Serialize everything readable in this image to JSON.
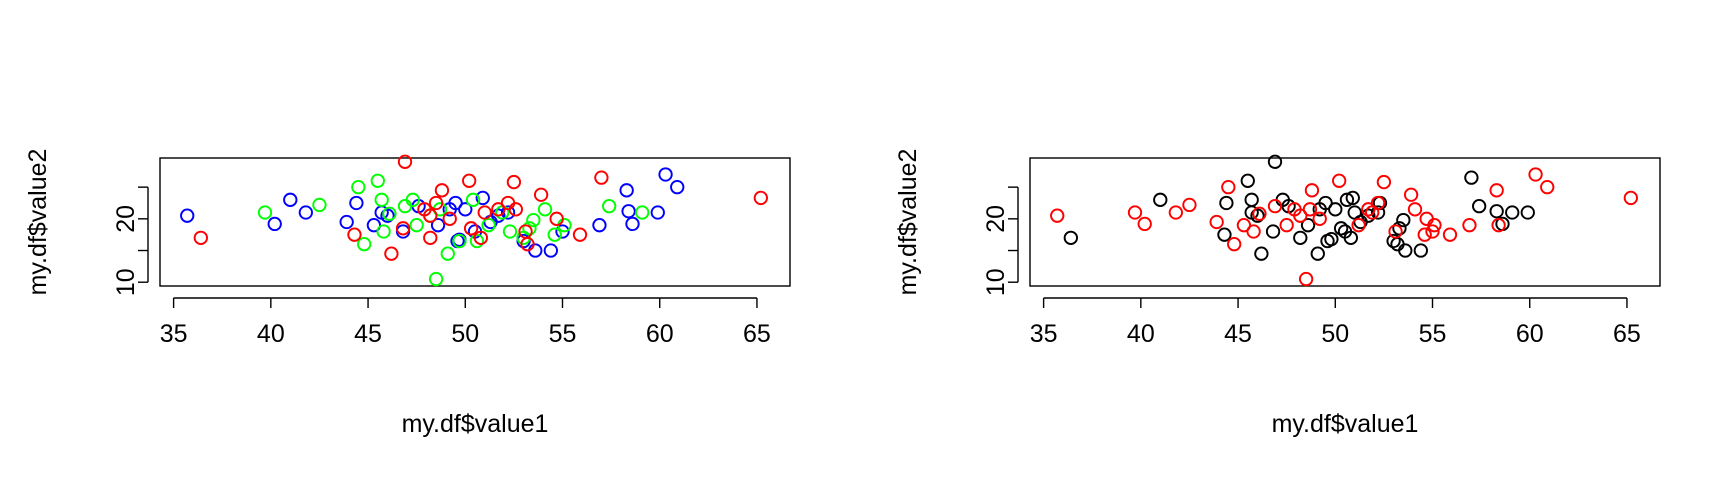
{
  "chart_data": [
    {
      "type": "scatter",
      "xlabel": "my.df$value1",
      "ylabel": "my.df$value2",
      "xlim": [
        34.3,
        66.7
      ],
      "ylim": [
        9.4,
        29.6
      ],
      "xticks": [
        35,
        40,
        45,
        50,
        55,
        60,
        65
      ],
      "yticks": [
        10,
        20
      ],
      "ytick_minor": [
        15,
        25
      ],
      "grid": false,
      "legend": "none",
      "marker": "open-circle",
      "series": [
        {
          "color": "#0000ff",
          "points": [
            [
              35.7,
              20.5
            ],
            [
              40.2,
              19.2
            ],
            [
              41.0,
              23.0
            ],
            [
              41.8,
              21.0
            ],
            [
              43.9,
              19.5
            ],
            [
              44.4,
              22.5
            ],
            [
              45.3,
              19.0
            ],
            [
              45.7,
              21.0
            ],
            [
              46.0,
              20.5
            ],
            [
              46.8,
              18.0
            ],
            [
              47.6,
              22.0
            ],
            [
              48.6,
              19.0
            ],
            [
              49.2,
              21.5
            ],
            [
              49.5,
              22.5
            ],
            [
              49.6,
              16.5
            ],
            [
              49.7,
              16.7
            ],
            [
              50.0,
              21.5
            ],
            [
              50.5,
              18.0
            ],
            [
              50.9,
              23.3
            ],
            [
              51.3,
              19.5
            ],
            [
              51.7,
              20.5
            ],
            [
              52.2,
              21.0
            ],
            [
              53.0,
              16.5
            ],
            [
              53.6,
              15.0
            ],
            [
              54.4,
              15.0
            ],
            [
              55.0,
              18.0
            ],
            [
              56.9,
              19.0
            ],
            [
              58.3,
              24.5
            ],
            [
              58.4,
              21.2
            ],
            [
              58.6,
              19.2
            ],
            [
              59.9,
              21.0
            ],
            [
              60.3,
              27.0
            ],
            [
              60.9,
              25.0
            ]
          ]
        },
        {
          "color": "#00ff00",
          "points": [
            [
              39.7,
              21.0
            ],
            [
              42.5,
              22.2
            ],
            [
              44.5,
              25.0
            ],
            [
              44.8,
              16.0
            ],
            [
              45.5,
              26.0
            ],
            [
              45.7,
              23.0
            ],
            [
              45.8,
              18.0
            ],
            [
              46.1,
              20.8
            ],
            [
              46.9,
              22.0
            ],
            [
              47.3,
              23.0
            ],
            [
              47.5,
              19.0
            ],
            [
              48.2,
              20.5
            ],
            [
              48.5,
              10.5
            ],
            [
              48.7,
              21.5
            ],
            [
              49.1,
              14.5
            ],
            [
              49.7,
              16.5
            ],
            [
              50.4,
              23.0
            ],
            [
              50.6,
              16.5
            ],
            [
              51.2,
              19.0
            ],
            [
              51.9,
              21.0
            ],
            [
              52.3,
              18.0
            ],
            [
              53.0,
              17.0
            ],
            [
              53.3,
              18.5
            ],
            [
              53.5,
              19.8
            ],
            [
              54.1,
              21.5
            ],
            [
              54.6,
              17.5
            ],
            [
              55.1,
              19.0
            ],
            [
              57.4,
              22.0
            ],
            [
              59.1,
              21.0
            ]
          ]
        },
        {
          "color": "#ff0000",
          "points": [
            [
              36.4,
              17.0
            ],
            [
              44.3,
              17.5
            ],
            [
              46.2,
              14.5
            ],
            [
              46.8,
              18.5
            ],
            [
              46.9,
              29.0
            ],
            [
              47.9,
              21.5
            ],
            [
              48.2,
              17.0
            ],
            [
              48.2,
              20.5
            ],
            [
              48.5,
              22.5
            ],
            [
              48.8,
              24.5
            ],
            [
              49.2,
              20.0
            ],
            [
              50.2,
              26.0
            ],
            [
              50.3,
              18.5
            ],
            [
              50.8,
              17.0
            ],
            [
              51.0,
              21.0
            ],
            [
              51.7,
              21.5
            ],
            [
              52.2,
              22.5
            ],
            [
              52.5,
              25.8
            ],
            [
              52.6,
              21.5
            ],
            [
              53.1,
              18.0
            ],
            [
              53.2,
              16.0
            ],
            [
              53.9,
              23.8
            ],
            [
              54.7,
              20.0
            ],
            [
              55.9,
              17.5
            ],
            [
              57.0,
              26.5
            ],
            [
              65.2,
              23.3
            ]
          ]
        }
      ]
    },
    {
      "type": "scatter",
      "xlabel": "my.df$value1",
      "ylabel": "my.df$value2",
      "xlim": [
        34.3,
        66.7
      ],
      "ylim": [
        9.4,
        29.6
      ],
      "xticks": [
        35,
        40,
        45,
        50,
        55,
        60,
        65
      ],
      "yticks": [
        10,
        20
      ],
      "ytick_minor": [
        15,
        25
      ],
      "grid": false,
      "legend": "none",
      "marker": "open-circle",
      "series": [
        {
          "color": "#000000",
          "points": [
            [
              36.4,
              17.0
            ],
            [
              41.0,
              23.0
            ],
            [
              44.3,
              17.5
            ],
            [
              44.4,
              22.5
            ],
            [
              45.5,
              26.0
            ],
            [
              45.7,
              23.0
            ],
            [
              45.7,
              21.0
            ],
            [
              46.0,
              20.5
            ],
            [
              46.2,
              14.5
            ],
            [
              46.8,
              18.0
            ],
            [
              46.9,
              29.0
            ],
            [
              47.3,
              23.0
            ],
            [
              47.6,
              22.0
            ],
            [
              48.2,
              17.0
            ],
            [
              48.6,
              19.0
            ],
            [
              49.1,
              14.5
            ],
            [
              49.2,
              21.5
            ],
            [
              49.5,
              22.5
            ],
            [
              49.6,
              16.5
            ],
            [
              49.8,
              16.8
            ],
            [
              50.0,
              21.5
            ],
            [
              50.3,
              18.5
            ],
            [
              50.5,
              18.0
            ],
            [
              50.6,
              23.0
            ],
            [
              50.8,
              17.0
            ],
            [
              50.9,
              23.3
            ],
            [
              51.0,
              21.0
            ],
            [
              51.3,
              19.5
            ],
            [
              51.7,
              20.5
            ],
            [
              52.2,
              21.0
            ],
            [
              52.3,
              22.5
            ],
            [
              53.0,
              16.5
            ],
            [
              53.2,
              16.0
            ],
            [
              53.3,
              18.5
            ],
            [
              53.5,
              19.8
            ],
            [
              53.6,
              15.0
            ],
            [
              54.4,
              15.0
            ],
            [
              57.0,
              26.5
            ],
            [
              57.4,
              22.0
            ],
            [
              58.3,
              21.2
            ],
            [
              58.6,
              19.2
            ],
            [
              59.1,
              21.0
            ],
            [
              59.9,
              21.0
            ]
          ]
        },
        {
          "color": "#ff0000",
          "points": [
            [
              35.7,
              20.5
            ],
            [
              39.7,
              21.0
            ],
            [
              40.2,
              19.2
            ],
            [
              41.8,
              21.0
            ],
            [
              42.5,
              22.2
            ],
            [
              43.9,
              19.5
            ],
            [
              44.5,
              25.0
            ],
            [
              44.8,
              16.0
            ],
            [
              45.3,
              19.0
            ],
            [
              45.8,
              18.0
            ],
            [
              46.1,
              20.8
            ],
            [
              46.9,
              22.0
            ],
            [
              47.5,
              19.0
            ],
            [
              47.9,
              21.5
            ],
            [
              48.2,
              20.5
            ],
            [
              48.5,
              10.5
            ],
            [
              48.7,
              21.5
            ],
            [
              48.8,
              24.5
            ],
            [
              49.2,
              20.0
            ],
            [
              50.2,
              26.0
            ],
            [
              51.2,
              19.0
            ],
            [
              51.7,
              21.5
            ],
            [
              51.9,
              21.0
            ],
            [
              52.2,
              22.5
            ],
            [
              52.5,
              25.8
            ],
            [
              53.1,
              18.0
            ],
            [
              53.9,
              23.8
            ],
            [
              54.1,
              21.5
            ],
            [
              54.6,
              17.5
            ],
            [
              54.7,
              20.0
            ],
            [
              55.0,
              18.0
            ],
            [
              55.1,
              19.0
            ],
            [
              55.9,
              17.5
            ],
            [
              56.9,
              19.0
            ],
            [
              58.3,
              24.5
            ],
            [
              58.4,
              19.0
            ],
            [
              60.3,
              27.0
            ],
            [
              60.9,
              25.0
            ],
            [
              65.2,
              23.3
            ]
          ]
        }
      ]
    }
  ]
}
